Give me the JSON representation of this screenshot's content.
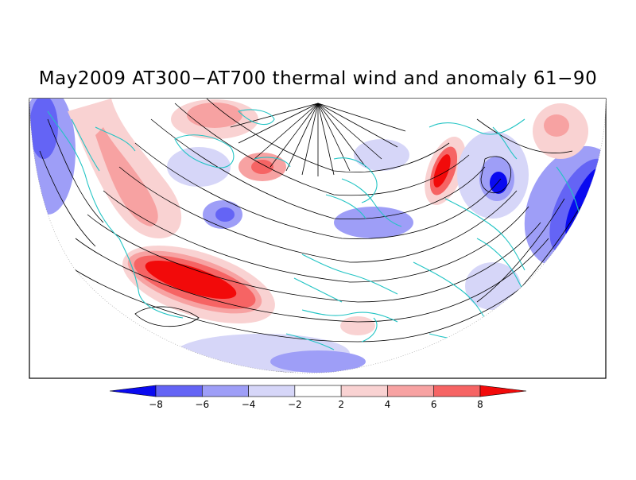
{
  "title": "May2009 AT300−AT700 thermal wind and anomaly 61−90",
  "map": {
    "projection": "north-polar-stereographic",
    "fields": [
      "thermal wind streamlines",
      "temperature anomaly (shaded)"
    ],
    "coastline_color": "#22c4c4",
    "streamline_color": "#000000"
  },
  "colorbar": {
    "ticks": [
      "−8",
      "−6",
      "−4",
      "−2",
      "2",
      "4",
      "6",
      "8"
    ],
    "colors": [
      "#0a0af0",
      "#6464f5",
      "#9e9ef7",
      "#d6d6f8",
      "#ffffff",
      "#f9d2d2",
      "#f7a2a2",
      "#f66464",
      "#f20a0a"
    ]
  }
}
